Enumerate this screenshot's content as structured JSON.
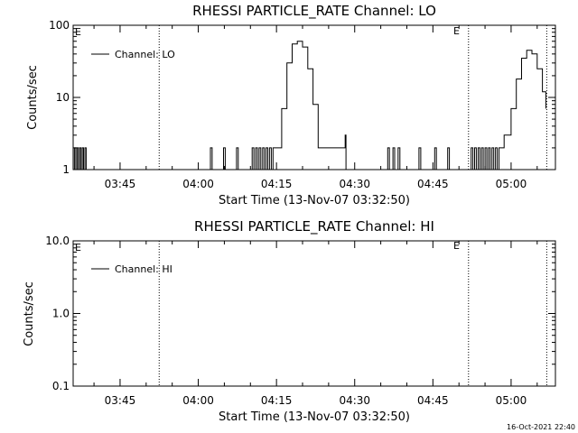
{
  "timestamp": "16-Oct-2021 22:40",
  "chart_data": [
    {
      "type": "line",
      "title": "RHESSI PARTICLE_RATE Channel: LO",
      "xlabel": "Start Time (13-Nov-07 03:32:50)",
      "ylabel": "Counts/sec",
      "y_scale": "log",
      "ylim": [
        1,
        100
      ],
      "xlim": [
        "03:36:00",
        "05:08:30"
      ],
      "x_ticks": [
        "03:45",
        "04:00",
        "04:15",
        "04:30",
        "04:45",
        "05:00"
      ],
      "y_ticks": [
        "1",
        "10",
        "100"
      ],
      "legend": "Channel: LO",
      "legend_position": "top-left",
      "event_markers": [
        {
          "time": "03:52:30",
          "label": ""
        },
        {
          "time": "04:51:50",
          "label": "E"
        },
        {
          "time": "05:06:50",
          "label": ""
        }
      ],
      "corner_label": "E",
      "series": [
        {
          "name": "Channel: LO",
          "x": [
            "03:36:00",
            "03:36:15",
            "03:36:30",
            "03:36:45",
            "03:37:00",
            "03:37:15",
            "03:37:30",
            "03:37:45",
            "03:38:00",
            "03:38:15",
            "03:38:30",
            "03:38:45",
            "04:02:00",
            "04:02:20",
            "04:02:40",
            "04:04:30",
            "04:04:50",
            "04:05:10",
            "04:07:00",
            "04:07:20",
            "04:07:40",
            "04:08:00",
            "04:10:00",
            "04:10:20",
            "04:10:40",
            "04:11:00",
            "04:11:20",
            "04:11:40",
            "04:12:00",
            "04:12:20",
            "04:12:40",
            "04:13:00",
            "04:13:20",
            "04:13:40",
            "04:14:00",
            "04:14:20",
            "04:14:40",
            "04:15:00",
            "04:16:00",
            "04:17:00",
            "04:18:00",
            "04:19:00",
            "04:20:00",
            "04:21:00",
            "04:22:00",
            "04:23:00",
            "04:24:00",
            "04:25:00",
            "04:26:00",
            "04:27:00",
            "04:28:00",
            "04:28:10",
            "04:28:20",
            "04:36:00",
            "04:36:20",
            "04:36:40",
            "04:37:00",
            "04:37:20",
            "04:37:40",
            "04:38:00",
            "04:38:20",
            "04:38:40",
            "04:42:00",
            "04:42:20",
            "04:42:40",
            "04:45:00",
            "04:45:20",
            "04:45:40",
            "04:47:30",
            "04:47:50",
            "04:48:10",
            "04:52:00",
            "04:52:20",
            "04:52:40",
            "04:53:00",
            "04:53:20",
            "04:53:40",
            "04:54:00",
            "04:54:20",
            "04:54:40",
            "04:55:00",
            "04:55:20",
            "04:55:40",
            "04:56:00",
            "04:56:20",
            "04:56:40",
            "04:57:00",
            "04:57:20",
            "04:57:40",
            "04:58:00",
            "04:58:20",
            "04:58:40",
            "04:59:00",
            "05:00:00",
            "05:01:00",
            "05:02:00",
            "05:03:00",
            "05:04:00",
            "05:05:00",
            "05:06:00",
            "05:06:40"
          ],
          "y": [
            1,
            2,
            1,
            2,
            1,
            2,
            1,
            2,
            1,
            2,
            1,
            1,
            1,
            2,
            1,
            1,
            2,
            1,
            1,
            2,
            1,
            1,
            1,
            2,
            1,
            2,
            1,
            2,
            1,
            2,
            1,
            2,
            1,
            2,
            1,
            2,
            2,
            2,
            7,
            30,
            55,
            60,
            50,
            25,
            8,
            2,
            2,
            2,
            2,
            2,
            2,
            3,
            1,
            1,
            2,
            1,
            1,
            2,
            1,
            1,
            2,
            1,
            1,
            2,
            1,
            1,
            2,
            1,
            1,
            2,
            1,
            1,
            2,
            1,
            2,
            1,
            2,
            1,
            2,
            1,
            2,
            1,
            2,
            1,
            2,
            1,
            2,
            1,
            2,
            2,
            2,
            3,
            3,
            7,
            18,
            35,
            45,
            40,
            25,
            12,
            7
          ]
        }
      ]
    },
    {
      "type": "line",
      "title": "RHESSI PARTICLE_RATE Channel: HI",
      "xlabel": "Start Time (13-Nov-07 03:32:50)",
      "ylabel": "Counts/sec",
      "y_scale": "log",
      "ylim": [
        0.1,
        10
      ],
      "xlim": [
        "03:36:00",
        "05:08:30"
      ],
      "x_ticks": [
        "03:45",
        "04:00",
        "04:15",
        "04:30",
        "04:45",
        "05:00"
      ],
      "y_ticks": [
        "0.1",
        "1.0",
        "10.0"
      ],
      "legend": "Channel: HI",
      "legend_position": "top-left",
      "event_markers": [
        {
          "time": "03:52:30",
          "label": ""
        },
        {
          "time": "04:51:50",
          "label": "E"
        },
        {
          "time": "05:06:50",
          "label": ""
        }
      ],
      "corner_label": "E",
      "series": [
        {
          "name": "Channel: HI",
          "x": [],
          "y": []
        }
      ]
    }
  ]
}
